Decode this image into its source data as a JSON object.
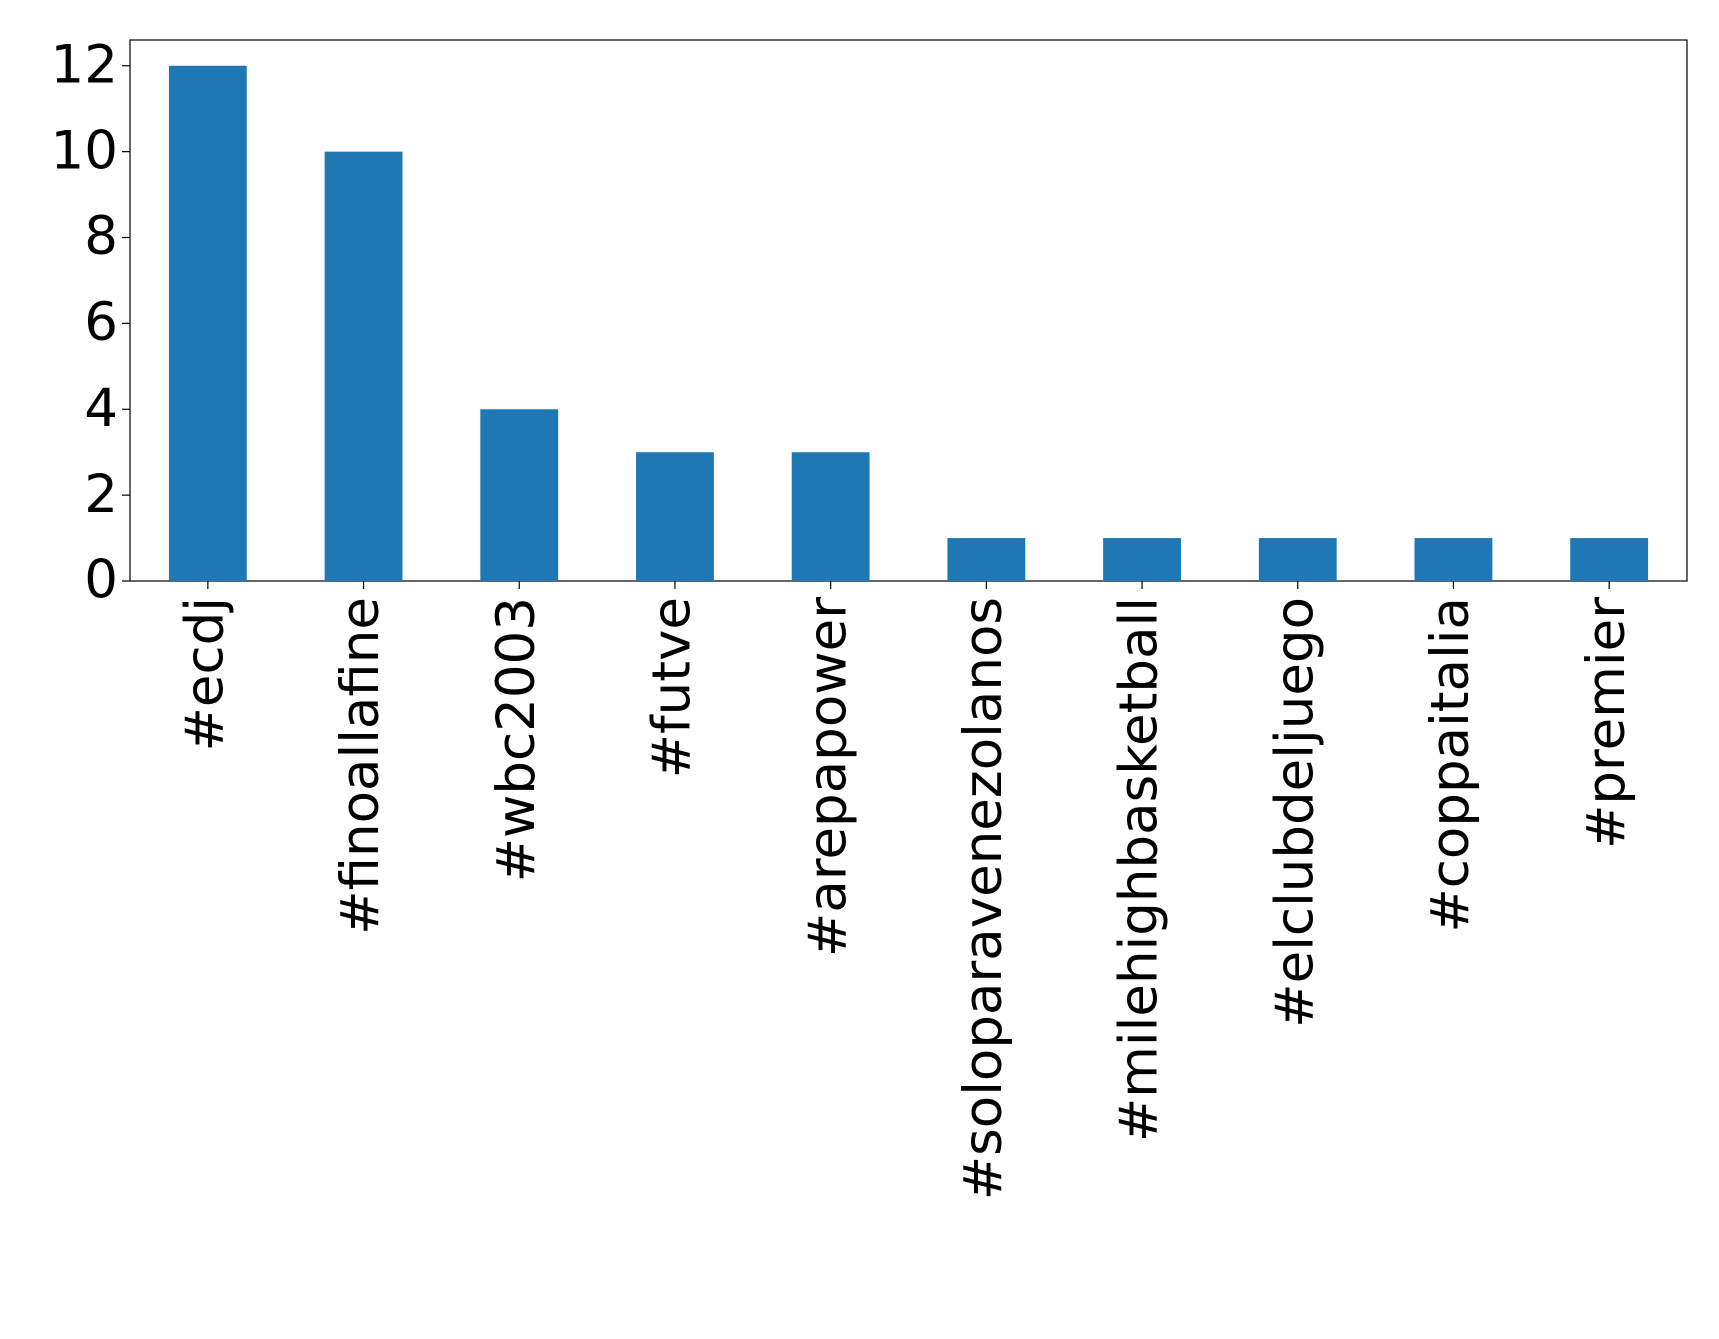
{
  "chart_data": {
    "type": "bar",
    "categories": [
      "#ecdj",
      "#finoallafine",
      "#wbc2003",
      "#futve",
      "#arepapower",
      "#soloparavenezolanos",
      "#milehighbasketball",
      "#elclubdeljuego",
      "#coppaitalia",
      "#premier"
    ],
    "values": [
      12,
      10,
      4,
      3,
      3,
      1,
      1,
      1,
      1,
      1
    ],
    "color": "#1f77b4",
    "ylim": [
      0,
      12.6
    ],
    "yticks": [
      0,
      2,
      4,
      6,
      8,
      10,
      12
    ],
    "grid": false
  }
}
